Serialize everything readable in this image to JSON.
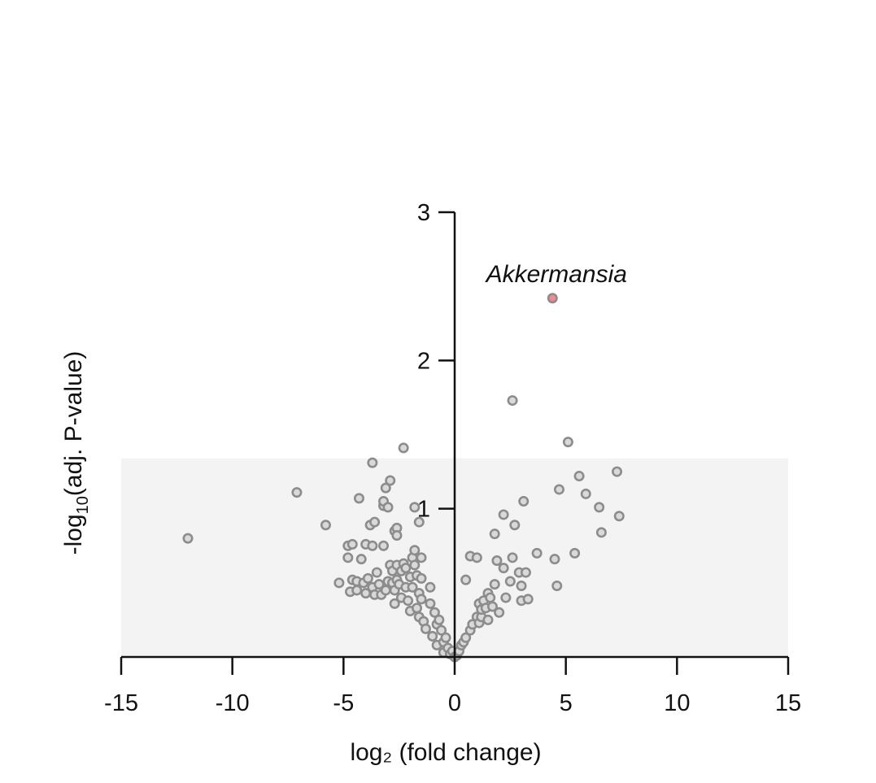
{
  "chart_data": {
    "type": "scatter",
    "title": "",
    "xlabel": "log₂ (fold change)",
    "ylabel_main": "-log",
    "ylabel_sub": "10",
    "ylabel_rest": "(adj. P-value)",
    "xlim": [
      -15,
      15
    ],
    "ylim": [
      0,
      3
    ],
    "xticks": [
      -15,
      -10,
      -5,
      0,
      5,
      10,
      15
    ],
    "xtick_labels": [
      "-15",
      "-10",
      "-5",
      "0",
      "5",
      "10",
      "15"
    ],
    "yticks": [
      1,
      2,
      3
    ],
    "ytick_labels": [
      "1",
      "2",
      "3"
    ],
    "grid": false,
    "nonsignificant_band": {
      "y_from": 0,
      "y_to": 1.34,
      "color": "#f3f3f3"
    },
    "colors": {
      "point_fill": "#d9d9d9",
      "point_stroke": "#8c8c8c",
      "highlight_fill": "#f08a8f",
      "highlight_stroke": "#8c8c8c",
      "axis": "#111111"
    },
    "highlight": {
      "label": "Akkermansia",
      "x": 4.4,
      "y": 2.42
    },
    "points": [
      [
        -12.0,
        0.8
      ],
      [
        -7.1,
        1.11
      ],
      [
        -5.8,
        0.89
      ],
      [
        -5.2,
        0.5
      ],
      [
        -4.8,
        0.67
      ],
      [
        -4.8,
        0.75
      ],
      [
        -4.7,
        0.44
      ],
      [
        -4.6,
        0.52
      ],
      [
        -4.6,
        0.76
      ],
      [
        -4.4,
        0.51
      ],
      [
        -4.4,
        0.45
      ],
      [
        -4.3,
        1.07
      ],
      [
        -4.2,
        0.66
      ],
      [
        -4.1,
        0.5
      ],
      [
        -4.0,
        0.43
      ],
      [
        -4.0,
        0.76
      ],
      [
        -3.9,
        0.53
      ],
      [
        -3.8,
        0.89
      ],
      [
        -3.7,
        0.47
      ],
      [
        -3.7,
        1.31
      ],
      [
        -3.7,
        0.75
      ],
      [
        -3.6,
        0.91
      ],
      [
        -3.6,
        0.42
      ],
      [
        -3.5,
        0.57
      ],
      [
        -3.4,
        0.49
      ],
      [
        -3.3,
        0.42
      ],
      [
        -3.2,
        1.02
      ],
      [
        -3.2,
        1.05
      ],
      [
        -3.2,
        0.75
      ],
      [
        -3.1,
        1.14
      ],
      [
        -3.1,
        0.45
      ],
      [
        -3.0,
        1.01
      ],
      [
        -3.0,
        0.51
      ],
      [
        -2.9,
        1.19
      ],
      [
        -2.9,
        0.62
      ],
      [
        -2.8,
        0.58
      ],
      [
        -2.8,
        0.5
      ],
      [
        -2.7,
        0.45
      ],
      [
        -2.7,
        0.85
      ],
      [
        -2.7,
        0.36
      ],
      [
        -2.6,
        0.87
      ],
      [
        -2.6,
        0.62
      ],
      [
        -2.6,
        0.52
      ],
      [
        -2.6,
        0.82
      ],
      [
        -2.5,
        0.49
      ],
      [
        -2.4,
        0.58
      ],
      [
        -2.4,
        0.4
      ],
      [
        -2.3,
        0.63
      ],
      [
        -2.3,
        1.41
      ],
      [
        -2.2,
        0.47
      ],
      [
        -2.2,
        0.6
      ],
      [
        -2.1,
        0.38
      ],
      [
        -2.0,
        0.54
      ],
      [
        -2.0,
        0.31
      ],
      [
        -1.9,
        0.67
      ],
      [
        -1.9,
        0.47
      ],
      [
        -1.8,
        0.62
      ],
      [
        -1.8,
        0.72
      ],
      [
        -1.8,
        1.01
      ],
      [
        -1.7,
        0.33
      ],
      [
        -1.7,
        0.55
      ],
      [
        -1.6,
        0.91
      ],
      [
        -1.6,
        0.43
      ],
      [
        -1.6,
        0.27
      ],
      [
        -1.5,
        0.67
      ],
      [
        -1.5,
        0.53
      ],
      [
        -1.5,
        0.39
      ],
      [
        -1.4,
        0.24
      ],
      [
        -1.3,
        0.19
      ],
      [
        -1.1,
        0.47
      ],
      [
        -1.1,
        0.36
      ],
      [
        -1.0,
        0.14
      ],
      [
        -0.9,
        0.3
      ],
      [
        -0.8,
        0.22
      ],
      [
        -0.8,
        0.08
      ],
      [
        -0.7,
        0.25
      ],
      [
        -0.6,
        0.18
      ],
      [
        -0.5,
        0.1
      ],
      [
        -0.5,
        0.03
      ],
      [
        -0.4,
        0.13
      ],
      [
        -0.3,
        0.06
      ],
      [
        -0.2,
        0.02
      ],
      [
        -0.1,
        0.04
      ],
      [
        0.0,
        0.0
      ],
      [
        0.1,
        0.01
      ],
      [
        0.2,
        0.04
      ],
      [
        0.3,
        0.08
      ],
      [
        0.4,
        0.1
      ],
      [
        0.5,
        0.13
      ],
      [
        0.5,
        0.52
      ],
      [
        0.7,
        0.18
      ],
      [
        0.7,
        0.68
      ],
      [
        0.8,
        0.22
      ],
      [
        1.0,
        0.27
      ],
      [
        1.0,
        0.67
      ],
      [
        1.1,
        0.23
      ],
      [
        1.1,
        0.36
      ],
      [
        1.2,
        0.27
      ],
      [
        1.2,
        0.32
      ],
      [
        1.3,
        0.38
      ],
      [
        1.4,
        0.33
      ],
      [
        1.5,
        0.25
      ],
      [
        1.5,
        0.43
      ],
      [
        1.6,
        0.4
      ],
      [
        1.7,
        0.34
      ],
      [
        1.8,
        0.49
      ],
      [
        1.8,
        0.83
      ],
      [
        1.9,
        0.65
      ],
      [
        2.0,
        0.3
      ],
      [
        2.2,
        0.6
      ],
      [
        2.2,
        0.96
      ],
      [
        2.3,
        0.4
      ],
      [
        2.5,
        0.51
      ],
      [
        2.6,
        0.67
      ],
      [
        2.6,
        1.73
      ],
      [
        2.7,
        0.89
      ],
      [
        2.9,
        0.57
      ],
      [
        3.0,
        0.38
      ],
      [
        3.0,
        0.48
      ],
      [
        3.1,
        1.05
      ],
      [
        3.2,
        0.57
      ],
      [
        3.3,
        0.39
      ],
      [
        3.7,
        0.7
      ],
      [
        4.5,
        0.66
      ],
      [
        4.6,
        0.48
      ],
      [
        4.7,
        1.13
      ],
      [
        5.1,
        1.45
      ],
      [
        5.4,
        0.7
      ],
      [
        5.6,
        1.22
      ],
      [
        5.9,
        1.1
      ],
      [
        6.5,
        1.01
      ],
      [
        6.6,
        0.84
      ],
      [
        7.3,
        1.25
      ],
      [
        7.4,
        0.95
      ]
    ]
  }
}
